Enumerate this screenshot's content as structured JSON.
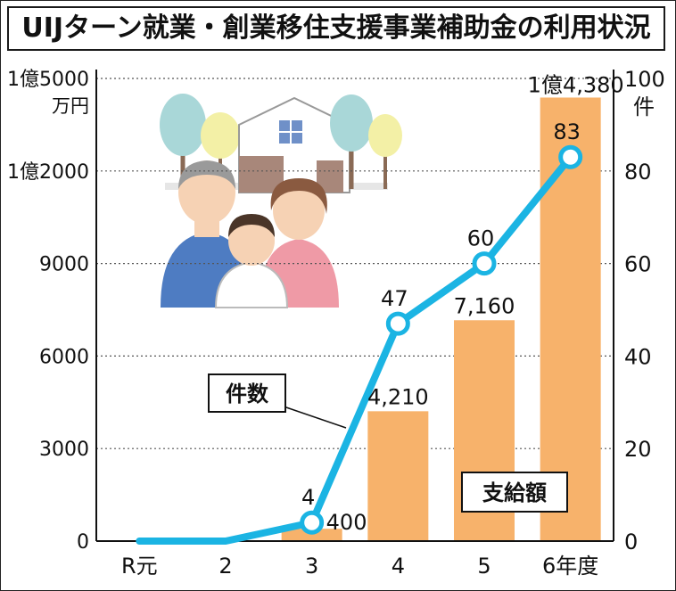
{
  "title": "UIJターン就業・創業移住支援事業補助金の利用状況",
  "chart_data": {
    "type": "bar+line",
    "categories": [
      "R元",
      "2",
      "3",
      "4",
      "5",
      "6年度"
    ],
    "bar_series": {
      "name": "支給額",
      "values": [
        0,
        0,
        400,
        4210,
        7160,
        14380
      ],
      "labels": [
        "",
        "",
        "400",
        "4,210",
        "7,160",
        "1億4,380"
      ],
      "color": "#f7b26b"
    },
    "line_series": {
      "name": "件数",
      "values": [
        0,
        0,
        4,
        47,
        60,
        83
      ],
      "labels": [
        "",
        "",
        "4",
        "47",
        "60",
        "83"
      ],
      "color": "#1bb4e3"
    },
    "y_left": {
      "unit": "万円",
      "range": [
        0,
        15000
      ],
      "ticks": [
        0,
        3000,
        6000,
        9000,
        12000,
        15000
      ],
      "tick_labels": [
        "0",
        "3000",
        "6000",
        "9000",
        "1億2000",
        "1億5000"
      ]
    },
    "y_right": {
      "unit": "件",
      "range": [
        0,
        100
      ],
      "ticks": [
        0,
        20,
        40,
        60,
        80,
        100
      ],
      "tick_labels": [
        "0",
        "20",
        "40",
        "60",
        "80",
        "100"
      ]
    },
    "grid": "dotted horizontal",
    "callouts": {
      "line": "件数",
      "bar": "支給額"
    },
    "illustration": "family-house-trees"
  }
}
